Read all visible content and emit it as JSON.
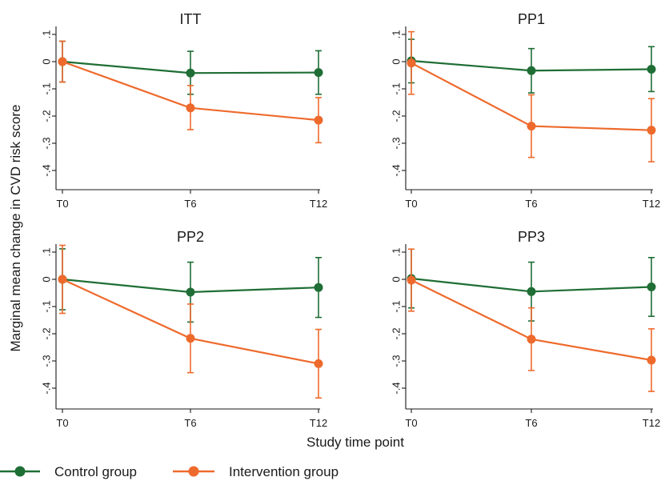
{
  "colors": {
    "control": "#1f6e35",
    "intervention": "#ee6a2c",
    "axis": "#1a1a1a"
  },
  "ylabel": "Marginal mean change in CVD risk score",
  "xlabel": "Study time point",
  "legend": {
    "items": [
      "Control group",
      "Intervention group"
    ],
    "placement": "bottom-left"
  },
  "chart_data": [
    {
      "type": "line",
      "title": "ITT",
      "categories": [
        "T0",
        "T6",
        "T12"
      ],
      "ylim": [
        -0.45,
        0.12
      ],
      "yticks": [
        0.1,
        0,
        -0.1,
        -0.2,
        -0.3,
        -0.4
      ],
      "ytick_labels": [
        ".1",
        "0",
        "-.1",
        "-.2",
        "-.3",
        "-.4"
      ],
      "grid": false,
      "series": [
        {
          "name": "Control group",
          "values": [
            0,
            -0.042,
            -0.04
          ],
          "lower": [
            -0.075,
            -0.12,
            -0.12
          ],
          "upper": [
            0.075,
            0.038,
            0.04
          ]
        },
        {
          "name": "Intervention group",
          "values": [
            0,
            -0.17,
            -0.215
          ],
          "lower": [
            -0.075,
            -0.25,
            -0.298
          ],
          "upper": [
            0.075,
            -0.088,
            -0.132
          ]
        }
      ]
    },
    {
      "type": "line",
      "title": "PP1",
      "categories": [
        "T0",
        "T6",
        "T12"
      ],
      "ylim": [
        -0.45,
        0.12
      ],
      "yticks": [
        0.1,
        0,
        -0.1,
        -0.2,
        -0.3,
        -0.4
      ],
      "ytick_labels": [
        ".1",
        "0",
        "-.1",
        "-.2",
        "-.3",
        "-.4"
      ],
      "grid": false,
      "series": [
        {
          "name": "Control group",
          "values": [
            0.003,
            -0.033,
            -0.028
          ],
          "lower": [
            -0.078,
            -0.115,
            -0.11
          ],
          "upper": [
            0.082,
            0.048,
            0.055
          ]
        },
        {
          "name": "Intervention group",
          "values": [
            -0.005,
            -0.237,
            -0.252
          ],
          "lower": [
            -0.12,
            -0.352,
            -0.368
          ],
          "upper": [
            0.11,
            -0.122,
            -0.136
          ]
        }
      ]
    },
    {
      "type": "line",
      "title": "PP2",
      "categories": [
        "T0",
        "T6",
        "T12"
      ],
      "ylim": [
        -0.45,
        0.12
      ],
      "yticks": [
        0.1,
        0,
        -0.1,
        -0.2,
        -0.3,
        -0.4
      ],
      "ytick_labels": [
        ".1",
        "0",
        "-.1",
        "-.2",
        "-.3",
        "-.4"
      ],
      "grid": false,
      "series": [
        {
          "name": "Control group",
          "values": [
            0,
            -0.047,
            -0.03
          ],
          "lower": [
            -0.112,
            -0.157,
            -0.14
          ],
          "upper": [
            0.112,
            0.063,
            0.08
          ]
        },
        {
          "name": "Intervention group",
          "values": [
            0,
            -0.217,
            -0.31
          ],
          "lower": [
            -0.125,
            -0.343,
            -0.436
          ],
          "upper": [
            0.125,
            -0.091,
            -0.184
          ]
        }
      ]
    },
    {
      "type": "line",
      "title": "PP3",
      "categories": [
        "T0",
        "T6",
        "T12"
      ],
      "ylim": [
        -0.45,
        0.12
      ],
      "yticks": [
        0.1,
        0,
        -0.1,
        -0.2,
        -0.3,
        -0.4
      ],
      "ytick_labels": [
        ".1",
        "0",
        "-.1",
        "-.2",
        "-.3",
        "-.4"
      ],
      "grid": false,
      "series": [
        {
          "name": "Control group",
          "values": [
            0.003,
            -0.045,
            -0.028
          ],
          "lower": [
            -0.105,
            -0.153,
            -0.136
          ],
          "upper": [
            0.111,
            0.063,
            0.08
          ]
        },
        {
          "name": "Intervention group",
          "values": [
            -0.003,
            -0.22,
            -0.297
          ],
          "lower": [
            -0.117,
            -0.335,
            -0.412
          ],
          "upper": [
            0.111,
            -0.105,
            -0.182
          ]
        }
      ]
    }
  ]
}
